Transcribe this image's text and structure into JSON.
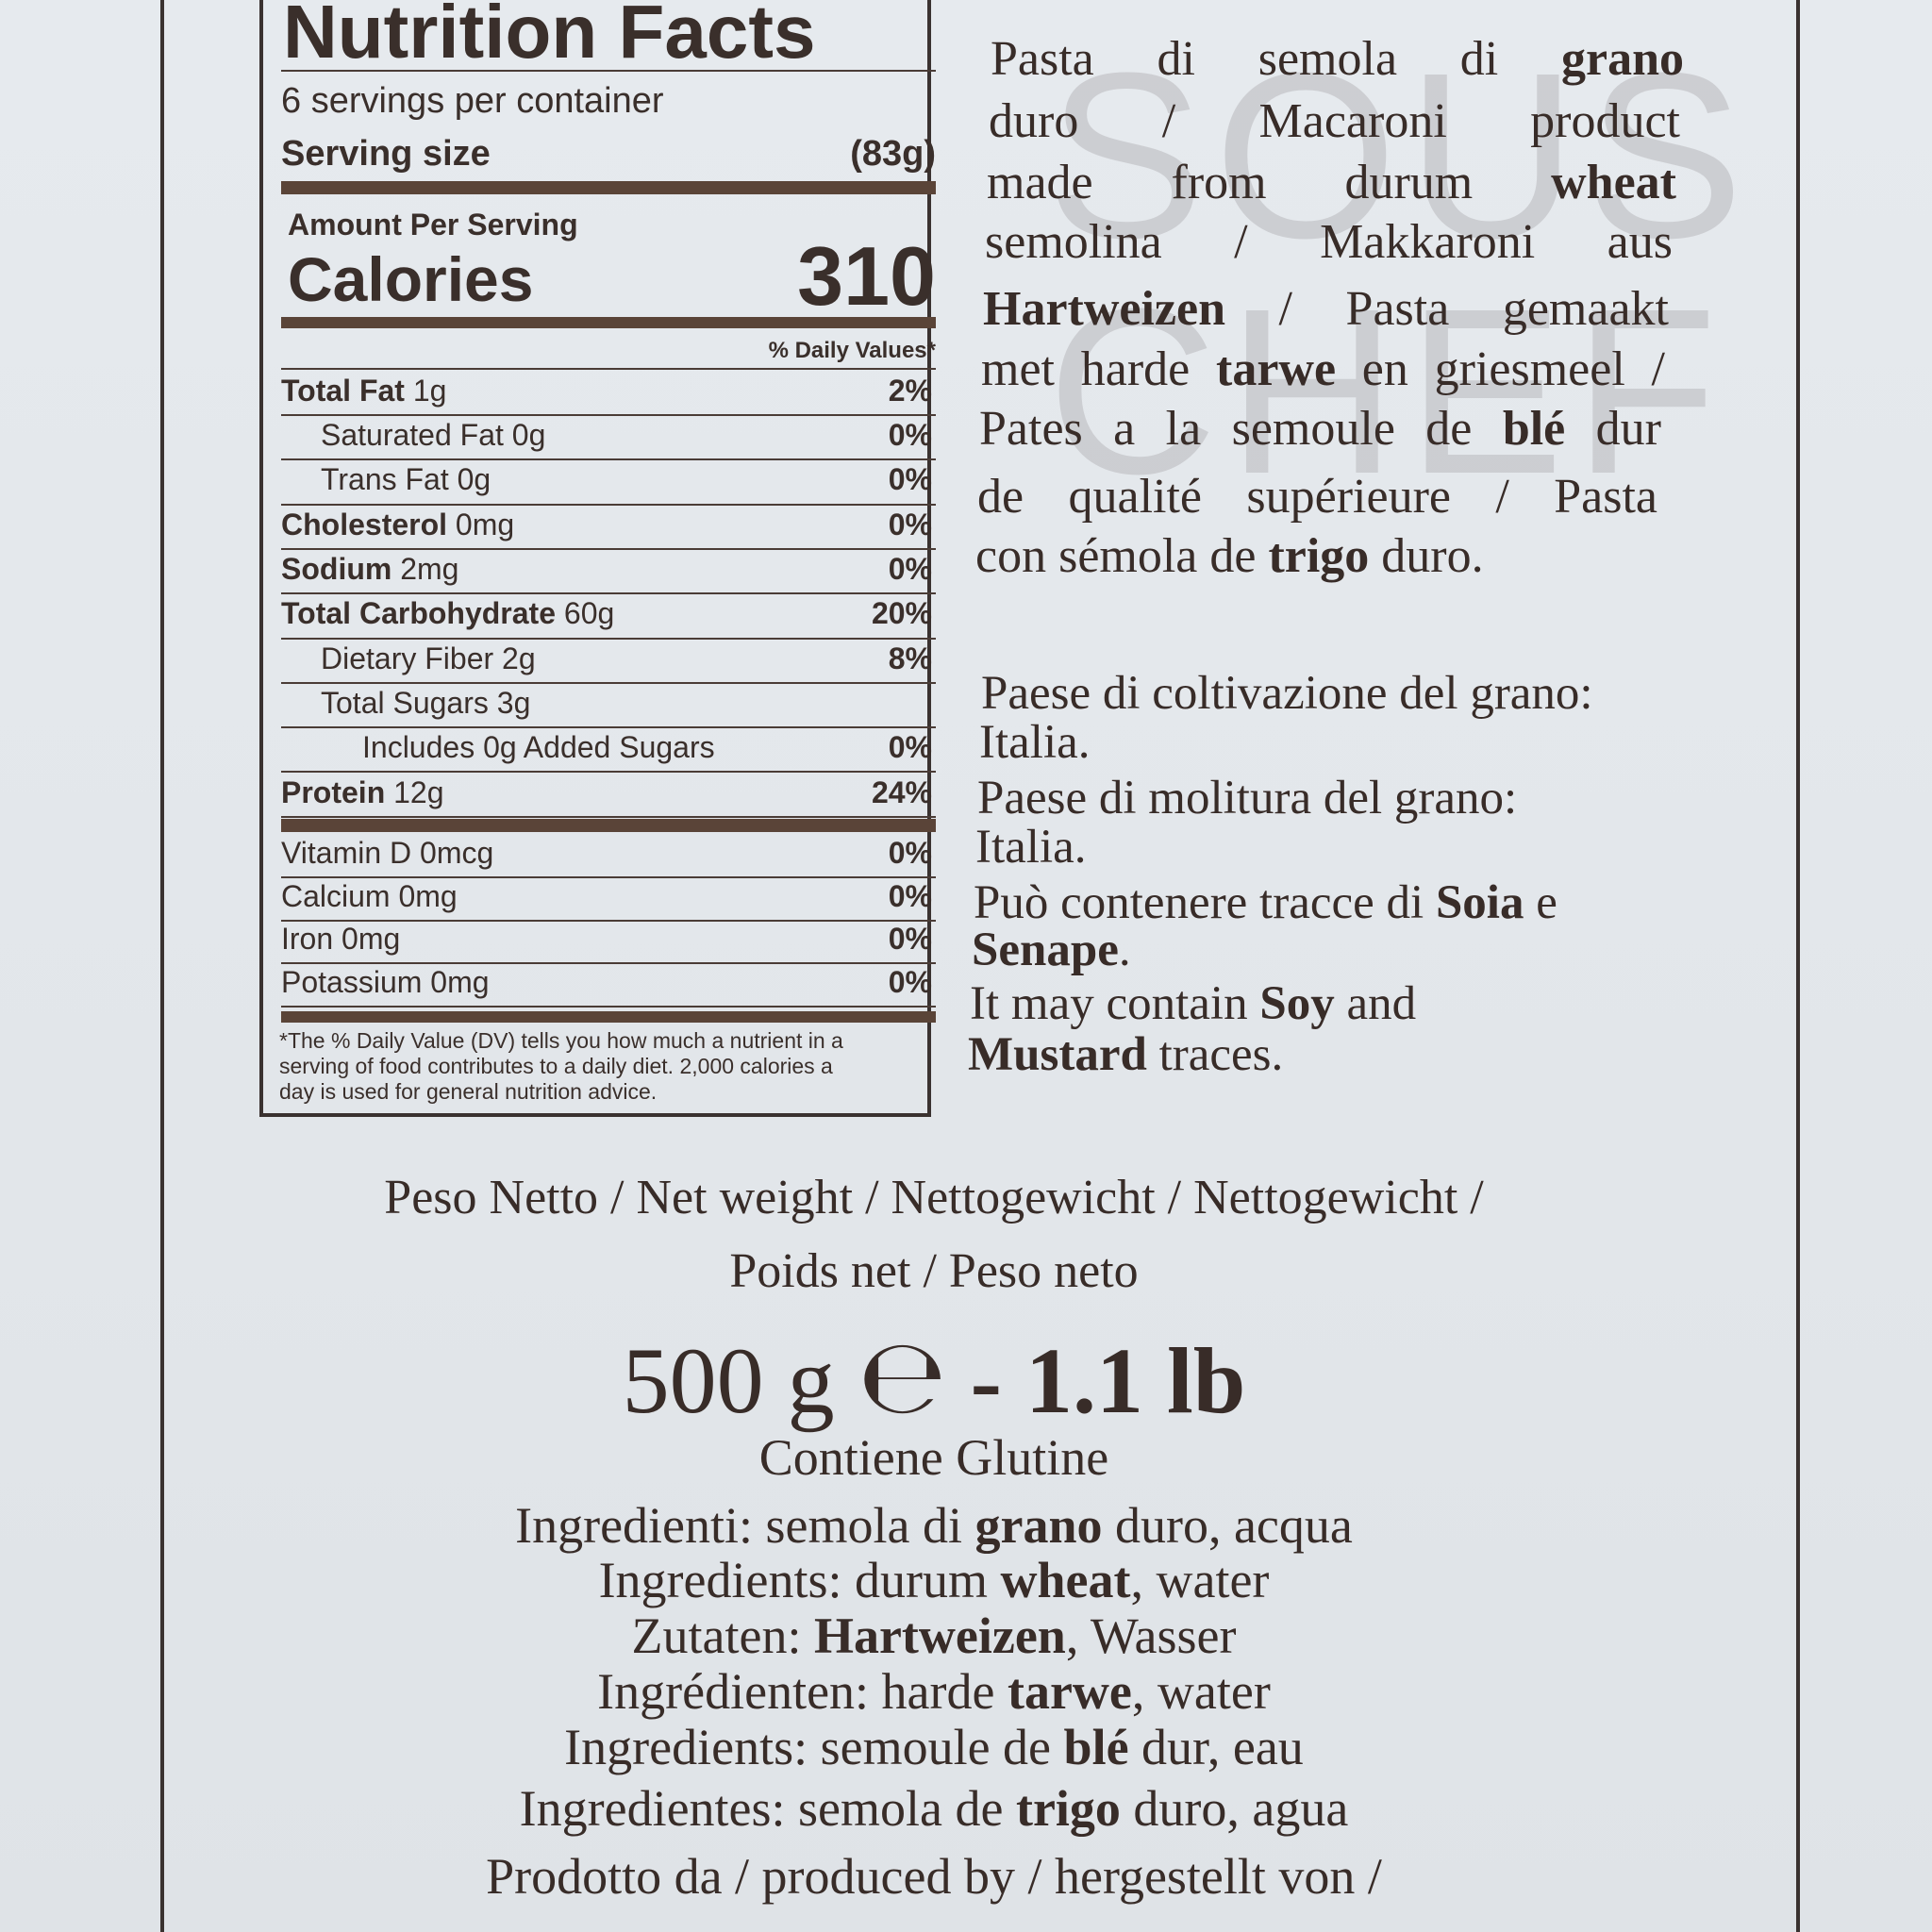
{
  "watermark": [
    "SOUS",
    "CHEF"
  ],
  "nutrition": {
    "title": "Nutrition Facts",
    "servings": "6 servings per container",
    "serving_size_label": "Serving size",
    "serving_size": "(83g)",
    "amount_per_serving": "Amount Per Serving",
    "calories_label": "Calories",
    "calories": 310,
    "dv_header": "% Daily Values*",
    "rows": [
      {
        "name": "Total Fat",
        "amount": "1g",
        "dv": "2%",
        "bold": true,
        "indent": 0
      },
      {
        "name": "Saturated Fat",
        "amount": "0g",
        "dv": "0%",
        "indent": 1
      },
      {
        "name": "Trans Fat",
        "amount": "0g",
        "dv": "0%",
        "indent": 1
      },
      {
        "name": "Cholesterol",
        "amount": "0mg",
        "dv": "0%",
        "bold": true,
        "indent": 0
      },
      {
        "name": "Sodium",
        "amount": "2mg",
        "dv": "0%",
        "bold": true,
        "indent": 0
      },
      {
        "name": "Total Carbohydrate",
        "amount": "60g",
        "dv": "20%",
        "bold": true,
        "indent": 0
      },
      {
        "name": "Dietary Fiber",
        "amount": "2g",
        "dv": "8%",
        "indent": 1
      },
      {
        "name": "Total Sugars",
        "amount": "3g",
        "indent": 1
      },
      {
        "name": "Includes 0g Added Sugars",
        "dv": "0%",
        "indent": 2
      },
      {
        "name": "Protein",
        "amount": "12g",
        "dv": "24%",
        "bold": true,
        "indent": 0
      }
    ],
    "vitamins": [
      {
        "name": "Vitamin D",
        "amount": "0mcg",
        "dv": "0%"
      },
      {
        "name": "Calcium",
        "amount": "0mg",
        "dv": "0%"
      },
      {
        "name": "Iron",
        "amount": "0mg",
        "dv": "0%"
      },
      {
        "name": "Potassium",
        "amount": "0mg",
        "dv": "0%"
      }
    ],
    "footnote": [
      "*The % Daily Value (DV) tells you how much a nutrient in a",
      "serving of food contributes to a daily diet. 2,000 calories a",
      "day is used for general nutrition advice."
    ]
  },
  "description": [
    [
      {
        "text": "Pasta di semola di "
      },
      {
        "text": "grano",
        "bold": true
      }
    ],
    [
      {
        "text": "duro / Macaroni product"
      }
    ],
    [
      {
        "text": "made from durum "
      },
      {
        "text": "wheat",
        "bold": true
      }
    ],
    [
      {
        "text": "semolina / Makkaroni aus"
      }
    ],
    [
      {
        "text": "Hartweizen",
        "bold": true
      },
      {
        "text": " / Pasta gemaakt"
      }
    ],
    [
      {
        "text": "met harde "
      },
      {
        "text": "tarwe",
        "bold": true
      },
      {
        "text": " en griesmeel /"
      }
    ],
    [
      {
        "text": "Pates a la semoule de "
      },
      {
        "text": "blé",
        "bold": true
      },
      {
        "text": " dur"
      }
    ],
    [
      {
        "text": "de qualité supérieure / Pasta"
      }
    ],
    [
      {
        "text": "con sémola de "
      },
      {
        "text": "trigo",
        "bold": true
      },
      {
        "text": " duro."
      }
    ]
  ],
  "origin": [
    [
      {
        "text": "Paese di coltivazione del grano:"
      }
    ],
    [
      {
        "text": "Italia."
      }
    ],
    [
      {
        "text": "Paese di molitura del grano:"
      }
    ],
    [
      {
        "text": "Italia."
      }
    ],
    [
      {
        "text": "Può contenere tracce di "
      },
      {
        "text": "Soia",
        "bold": true
      },
      {
        "text": " e"
      }
    ],
    [
      {
        "text": "Senape",
        "bold": true
      },
      {
        "text": "."
      }
    ],
    [
      {
        "text": "It may contain "
      },
      {
        "text": "Soy",
        "bold": true
      },
      {
        "text": " and"
      }
    ],
    [
      {
        "text": "Mustard",
        "bold": true
      },
      {
        "text": " traces."
      }
    ]
  ],
  "net_weight": [
    "Peso Netto / Net weight / Nettogewicht / Nettogewicht /",
    "Poids net / Peso neto"
  ],
  "weight": {
    "metric": "500 g",
    "estimated_sign": "℮",
    "imperial": "- 1.1 lb"
  },
  "ingredients": [
    [
      {
        "text": "Contiene Glutine"
      }
    ],
    [
      {
        "text": "Ingredienti: semola di "
      },
      {
        "text": "grano",
        "bold": true
      },
      {
        "text": " duro, acqua"
      }
    ],
    [
      {
        "text": "Ingredients: durum "
      },
      {
        "text": "wheat",
        "bold": true
      },
      {
        "text": ", water"
      }
    ],
    [
      {
        "text": "Zutaten: "
      },
      {
        "text": "Hartweizen",
        "bold": true
      },
      {
        "text": ", Wasser"
      }
    ],
    [
      {
        "text": "Ingrédienten: harde "
      },
      {
        "text": "tarwe",
        "bold": true
      },
      {
        "text": ", water"
      }
    ],
    [
      {
        "text": "Ingredients: semoule de "
      },
      {
        "text": "blé",
        "bold": true
      },
      {
        "text": " dur, eau"
      }
    ],
    [
      {
        "text": "Ingredientes: semola de "
      },
      {
        "text": "trigo",
        "bold": true
      },
      {
        "text": " duro, agua"
      }
    ],
    [
      {
        "text": "Prodotto da / produced by / hergestellt von /"
      }
    ]
  ]
}
